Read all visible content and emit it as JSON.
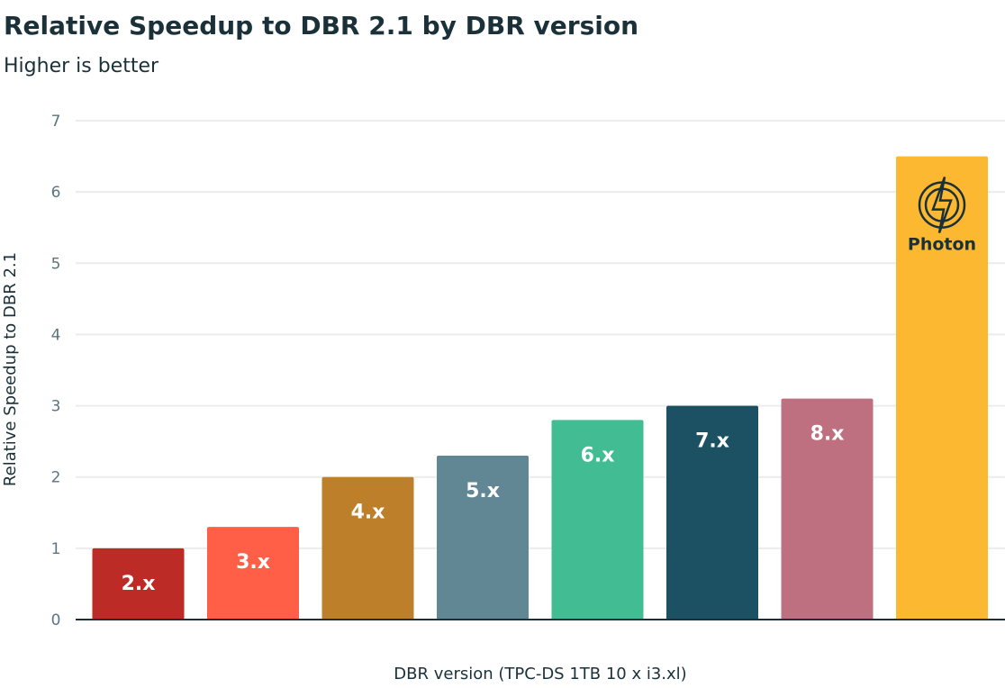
{
  "chart_data": {
    "type": "bar",
    "title": "Relative Speedup to DBR 2.1 by DBR version",
    "subtitle": "Higher is better",
    "xlabel": "DBR version (TPC-DS 1TB 10 x i3.xl)",
    "ylabel": "Relative Speedup to DBR 2.1",
    "ylim": [
      0,
      7
    ],
    "yticks": [
      "0",
      "1",
      "2",
      "3",
      "4",
      "5",
      "6",
      "7"
    ],
    "grid": true,
    "categories": [
      "2.x",
      "3.x",
      "4.x",
      "5.x",
      "6.x",
      "7.x",
      "8.x",
      "Photon"
    ],
    "values": [
      1.0,
      1.3,
      2.0,
      2.3,
      2.8,
      3.0,
      3.1,
      6.5
    ],
    "colors": [
      "#bd2b26",
      "#ff5f46",
      "#be7f2b",
      "#618794",
      "#42bc93",
      "#1b5162",
      "#bf7080",
      "#fcb830"
    ],
    "photon_icon": "lightning-bolt-circle-icon",
    "photon_label_color": "#1b3139"
  }
}
